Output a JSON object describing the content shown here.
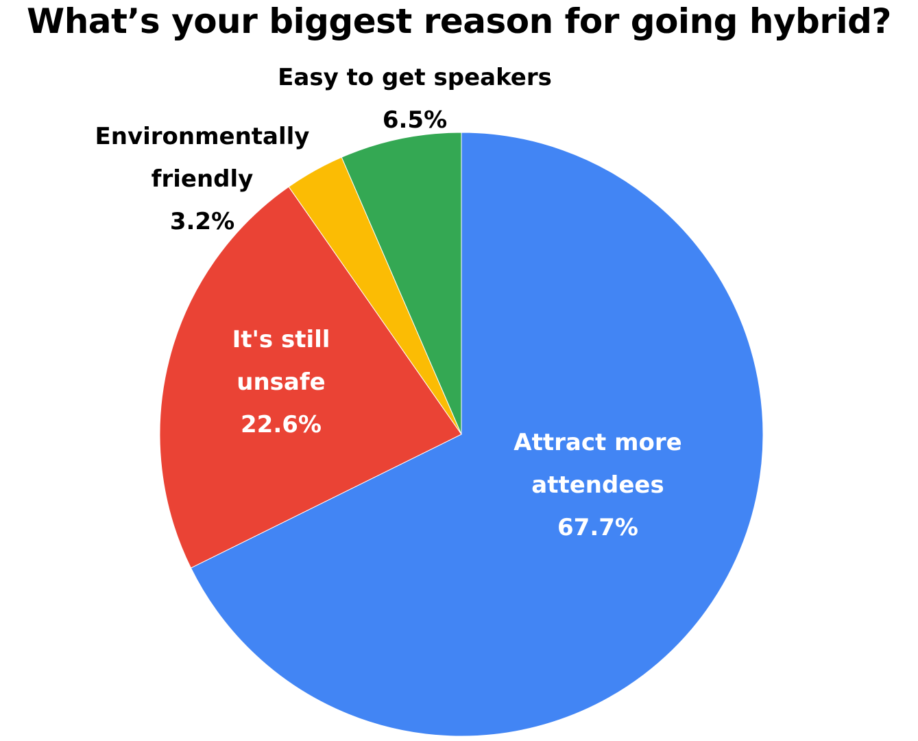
{
  "title": "What’s your biggest reason for going hybrid?",
  "chart_data": {
    "type": "pie",
    "title": "What’s your biggest reason for going hybrid?",
    "categories": [
      "Attract more attendees",
      "It's still unsafe",
      "Environmentally friendly",
      "Easy to get speakers"
    ],
    "values": [
      67.7,
      22.6,
      3.2,
      6.5
    ],
    "colors": [
      "#4285F4",
      "#EA4335",
      "#FBBC04",
      "#34A853"
    ],
    "start_angle": "12 o'clock, clockwise",
    "legend": "none (data labels on slices)"
  },
  "labels": {
    "attract": {
      "line1": "Attract more",
      "line2": "attendees",
      "pct": "67.7%"
    },
    "unsafe": {
      "line1": "It's still",
      "line2": "unsafe",
      "pct": "22.6%"
    },
    "env": {
      "line1": "Environmentally",
      "line2": "friendly",
      "pct": "3.2%"
    },
    "speakers": {
      "line1": "Easy to get speakers",
      "pct": "6.5%"
    }
  }
}
